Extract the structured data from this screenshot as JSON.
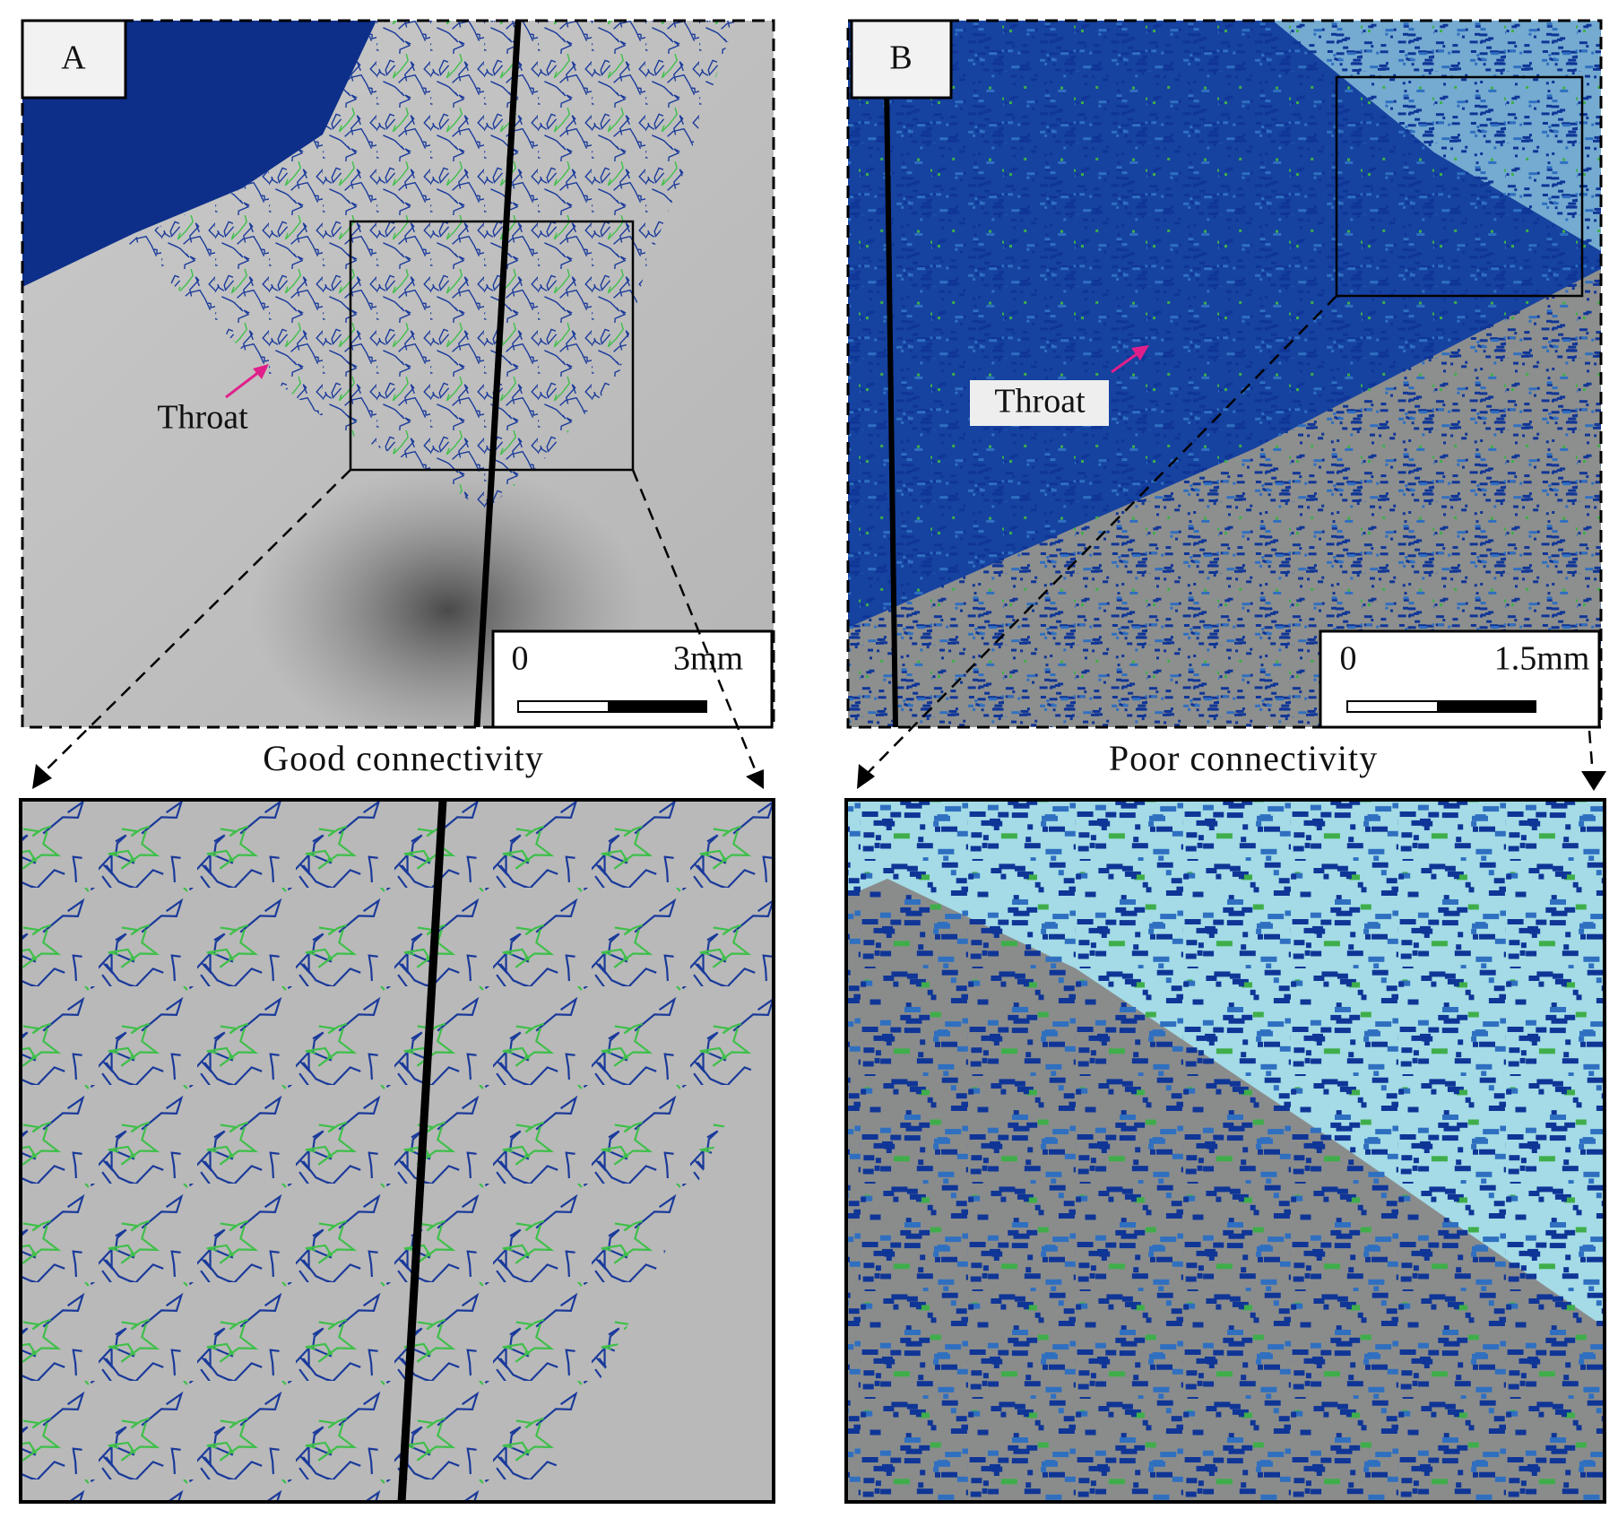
{
  "panels": [
    {
      "label": "A",
      "annotation": "Throat",
      "scale_start": "0",
      "scale_end": "3mm",
      "caption": "Good connectivity"
    },
    {
      "label": "B",
      "annotation": "Throat",
      "scale_start": "0",
      "scale_end": "1.5mm",
      "caption": "Poor connectivity"
    }
  ]
}
